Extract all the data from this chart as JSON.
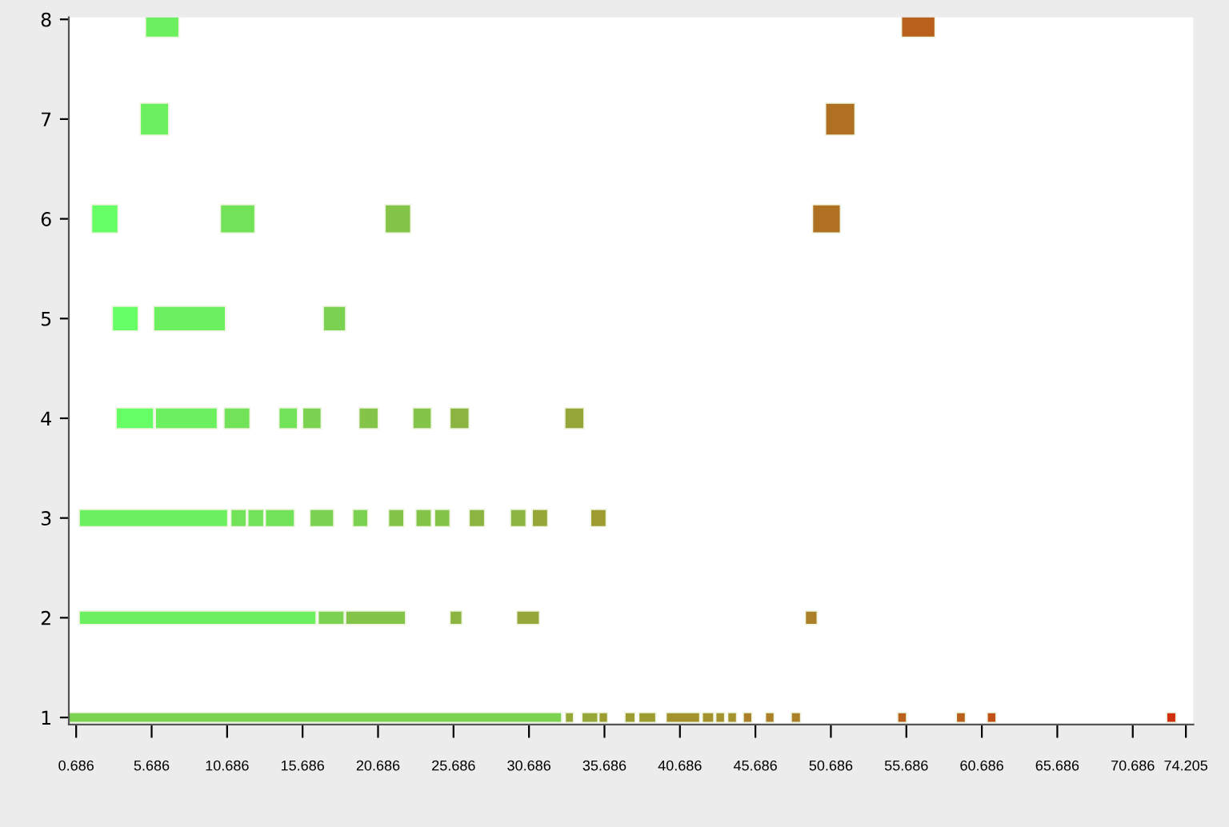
{
  "chart_data": {
    "type": "bar",
    "orientation": "horizontal",
    "categories": [
      "8",
      "7",
      "6",
      "5",
      "4",
      "3",
      "2",
      "1"
    ],
    "xlim": [
      0.2,
      74.7
    ],
    "xticks": [
      0.686,
      5.686,
      10.686,
      15.686,
      20.686,
      25.686,
      30.686,
      35.686,
      40.686,
      45.686,
      50.686,
      55.686,
      60.686,
      65.686,
      70.686,
      74.205
    ],
    "grid": false,
    "legend": false,
    "series": [
      {
        "base": [
          5.28,
          4.93,
          1.71,
          3.08,
          3.33,
          0.89,
          0.89,
          0.2
        ],
        "values": [
          2.22,
          1.89,
          1.75,
          1.72,
          2.49,
          9.84,
          15.69,
          32.65
        ],
        "colors": [
          "#6cf060",
          "#6cf060",
          "#66ff66",
          "#66ff66",
          "#66ff66",
          "#6cf060",
          "#6cf060",
          "#7ad250"
        ]
      },
      {
        "base": [
          55.36,
          50.33,
          10.24,
          5.82,
          5.93,
          10.93,
          16.72,
          33.09
        ],
        "values": [
          2.23,
          1.95,
          2.29,
          4.76,
          4.11,
          1.03,
          1.72,
          0.55
        ],
        "colors": [
          "#b8601c",
          "#b07022",
          "#72e258",
          "#6cf060",
          "#6cf060",
          "#72e258",
          "#7ad250",
          "#96a638"
        ]
      },
      {
        "base": [
          null,
          null,
          21.15,
          17.06,
          10.48,
          12.06,
          18.54,
          34.19
        ],
        "values": [
          null,
          null,
          1.7,
          1.48,
          1.72,
          1.06,
          3.97,
          1.06
        ],
        "colors": [
          null,
          null,
          "#84c448",
          "#7ad250",
          "#72e258",
          "#72e258",
          "#84c448",
          "#96a638"
        ]
      },
      {
        "base": [
          null,
          null,
          49.47,
          null,
          14.12,
          13.22,
          25.45,
          35.32
        ],
        "values": [
          null,
          null,
          1.85,
          null,
          1.23,
          1.93,
          0.8,
          0.58
        ],
        "colors": [
          null,
          null,
          "#b07022",
          null,
          "#72e258",
          "#72e258",
          "#8cb440",
          "#9c9c30"
        ]
      },
      {
        "base": [
          null,
          null,
          null,
          null,
          15.69,
          16.17,
          29.87,
          37.04
        ],
        "values": [
          null,
          null,
          null,
          null,
          1.23,
          1.58,
          1.51,
          0.68
        ],
        "colors": [
          null,
          null,
          null,
          null,
          "#7ad250",
          "#7ad250",
          "#96a638",
          "#9c9c30"
        ]
      },
      {
        "base": [
          null,
          null,
          null,
          null,
          19.42,
          19.01,
          48.99,
          37.96
        ],
        "values": [
          null,
          null,
          null,
          null,
          1.28,
          1.0,
          0.79,
          1.13
        ],
        "colors": [
          null,
          null,
          null,
          null,
          "#84c448",
          "#7ad250",
          "#ac8028",
          "#9c9c30"
        ]
      },
      {
        "base": [
          null,
          null,
          null,
          null,
          22.99,
          21.38,
          null,
          39.77
        ],
        "values": [
          null,
          null,
          null,
          null,
          1.23,
          1.02,
          null,
          2.23
        ],
        "colors": [
          null,
          null,
          null,
          null,
          "#84c448",
          "#84c448",
          null,
          "#a4922c"
        ]
      },
      {
        "base": [
          null,
          null,
          null,
          null,
          25.45,
          23.19,
          null,
          42.17
        ],
        "values": [
          null,
          null,
          null,
          null,
          1.27,
          1.03,
          null,
          0.76
        ],
        "colors": [
          null,
          null,
          null,
          null,
          "#8cb440",
          "#84c448",
          null,
          "#a4922c"
        ]
      },
      {
        "base": [
          null,
          null,
          null,
          null,
          33.06,
          24.43,
          null,
          43.06
        ],
        "values": [
          null,
          null,
          null,
          null,
          1.27,
          1.02,
          null,
          0.59
        ],
        "colors": [
          null,
          null,
          null,
          null,
          "#96a638",
          "#84c448",
          null,
          "#a4922c"
        ]
      },
      {
        "base": [
          null,
          null,
          null,
          null,
          null,
          26.72,
          null,
          43.85
        ],
        "values": [
          null,
          null,
          null,
          null,
          null,
          1.03,
          null,
          0.59
        ],
        "colors": [
          null,
          null,
          null,
          null,
          null,
          "#8cb440",
          null,
          "#a4922c"
        ]
      },
      {
        "base": [
          null,
          null,
          null,
          null,
          null,
          29.46,
          null,
          44.88
        ],
        "values": [
          null,
          null,
          null,
          null,
          null,
          1.03,
          null,
          0.58
        ],
        "colors": [
          null,
          null,
          null,
          null,
          null,
          "#8cb440",
          null,
          "#ac8028"
        ]
      },
      {
        "base": [
          null,
          null,
          null,
          null,
          null,
          30.9,
          null,
          46.35
        ],
        "values": [
          null,
          null,
          null,
          null,
          null,
          1.03,
          null,
          0.58
        ],
        "colors": [
          null,
          null,
          null,
          null,
          null,
          "#96a638",
          null,
          "#ac8028"
        ]
      },
      {
        "base": [
          null,
          null,
          null,
          null,
          null,
          34.77,
          null,
          48.06
        ],
        "values": [
          null,
          null,
          null,
          null,
          null,
          1.03,
          null,
          0.62
        ],
        "colors": [
          null,
          null,
          null,
          null,
          null,
          "#9c9c30",
          null,
          "#ac8028"
        ]
      },
      {
        "base": [
          null,
          null,
          null,
          null,
          null,
          null,
          null,
          55.11
        ],
        "values": [
          null,
          null,
          null,
          null,
          null,
          null,
          null,
          0.59
        ],
        "colors": [
          null,
          null,
          null,
          null,
          null,
          null,
          null,
          "#b8601c"
        ]
      },
      {
        "base": [
          null,
          null,
          null,
          null,
          null,
          null,
          null,
          59.0
        ],
        "values": [
          null,
          null,
          null,
          null,
          null,
          null,
          null,
          0.6
        ],
        "colors": [
          null,
          null,
          null,
          null,
          null,
          null,
          null,
          "#b8601c"
        ]
      },
      {
        "base": [
          null,
          null,
          null,
          null,
          null,
          null,
          null,
          61.04
        ],
        "values": [
          null,
          null,
          null,
          null,
          null,
          null,
          null,
          0.59
        ],
        "colors": [
          null,
          null,
          null,
          null,
          null,
          null,
          null,
          "#c05016"
        ]
      },
      {
        "base": [
          null,
          null,
          null,
          null,
          null,
          null,
          null,
          72.93
        ],
        "values": [
          null,
          null,
          null,
          null,
          null,
          null,
          null,
          0.62
        ],
        "colors": [
          null,
          null,
          null,
          null,
          null,
          null,
          null,
          "#d03010"
        ]
      }
    ]
  }
}
